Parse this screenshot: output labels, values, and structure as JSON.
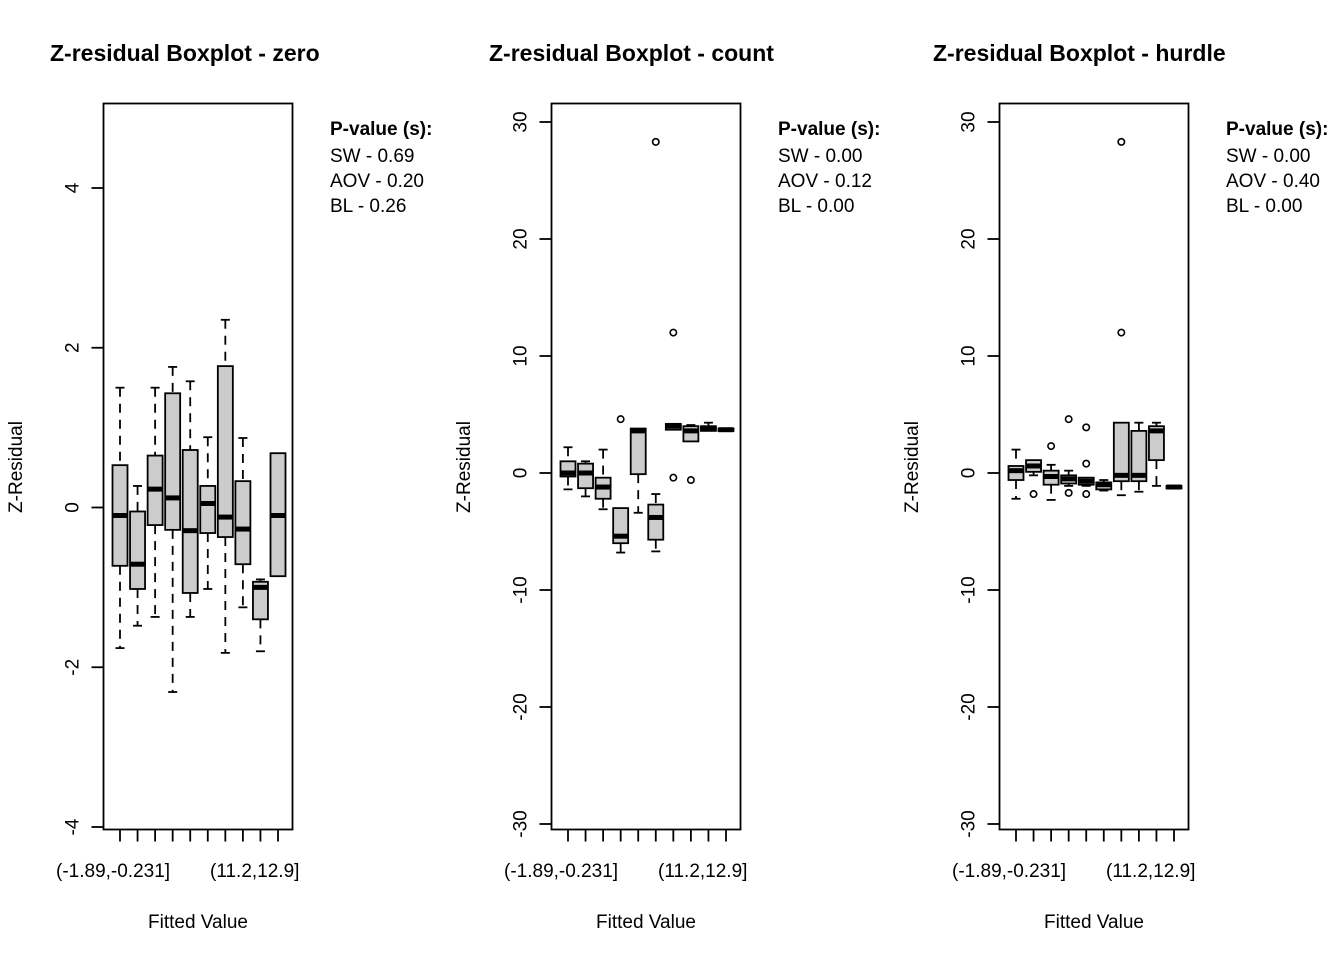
{
  "chart_data": [
    {
      "type": "boxplot",
      "title": "Z-residual Boxplot - zero",
      "xlabel": "Fitted Value",
      "ylabel": "Z-Residual",
      "ylim": [
        -4,
        5
      ],
      "yticks": [
        -4,
        -2,
        0,
        2,
        4
      ],
      "xtick_labels": [
        "(-1.89,-0.231]",
        "(11.2,12.9]"
      ],
      "n_groups": 10,
      "pvalues": {
        "heading": "P-value (s):",
        "lines": [
          "SW - 0.69",
          "AOV - 0.20",
          "BL - 0.26"
        ]
      },
      "boxes": [
        {
          "lo": -1.76,
          "q1": -0.73,
          "med": -0.1,
          "q3": 0.53,
          "hi": 1.5,
          "out": []
        },
        {
          "lo": -1.48,
          "q1": -1.02,
          "med": -0.71,
          "q3": -0.05,
          "hi": 0.27,
          "out": []
        },
        {
          "lo": -1.37,
          "q1": -0.22,
          "med": 0.23,
          "q3": 0.65,
          "hi": 1.5,
          "out": []
        },
        {
          "lo": -2.31,
          "q1": -0.28,
          "med": 0.12,
          "q3": 1.43,
          "hi": 1.76,
          "out": []
        },
        {
          "lo": -1.37,
          "q1": -1.07,
          "med": -0.29,
          "q3": 0.72,
          "hi": 1.58,
          "out": []
        },
        {
          "lo": -1.02,
          "q1": -0.32,
          "med": 0.05,
          "q3": 0.27,
          "hi": 0.88,
          "out": []
        },
        {
          "lo": -1.82,
          "q1": -0.37,
          "med": -0.12,
          "q3": 1.77,
          "hi": 2.35,
          "out": []
        },
        {
          "lo": -1.25,
          "q1": -0.71,
          "med": -0.27,
          "q3": 0.33,
          "hi": 0.87,
          "out": []
        },
        {
          "lo": -1.8,
          "q1": -1.4,
          "med": -1.0,
          "q3": -0.93,
          "hi": -0.9,
          "out": []
        },
        {
          "lo": -0.86,
          "q1": -0.86,
          "med": -0.1,
          "q3": 0.68,
          "hi": 0.68,
          "out": []
        }
      ]
    },
    {
      "type": "boxplot",
      "title": "Z-residual Boxplot - count",
      "xlabel": "Fitted Value",
      "ylabel": "Z-Residual",
      "ylim": [
        -30,
        30
      ],
      "yticks": [
        -30,
        -20,
        -10,
        0,
        10,
        20,
        30
      ],
      "xtick_labels": [
        "(-1.89,-0.231]",
        "(11.2,12.9]"
      ],
      "n_groups": 10,
      "pvalues": {
        "heading": "P-value (s):",
        "lines": [
          "SW - 0.00",
          "AOV - 0.12",
          "BL - 0.00"
        ]
      },
      "boxes": [
        {
          "lo": -1.4,
          "q1": -0.3,
          "med": 0.0,
          "q3": 1.0,
          "hi": 2.2,
          "out": []
        },
        {
          "lo": -2.0,
          "q1": -1.3,
          "med": 0.0,
          "q3": 0.8,
          "hi": 1.0,
          "out": []
        },
        {
          "lo": -3.1,
          "q1": -2.2,
          "med": -1.2,
          "q3": -0.4,
          "hi": 2.0,
          "out": []
        },
        {
          "lo": -6.8,
          "q1": -6.0,
          "med": -5.4,
          "q3": -3.0,
          "hi": -3.0,
          "out": [
            4.6
          ]
        },
        {
          "lo": -3.4,
          "q1": -0.1,
          "med": 3.6,
          "q3": 3.8,
          "hi": 3.8,
          "out": []
        },
        {
          "lo": -6.7,
          "q1": -5.7,
          "med": -3.8,
          "q3": -2.7,
          "hi": -1.8,
          "out": [
            28.3
          ]
        },
        {
          "lo": 3.7,
          "q1": 3.7,
          "med": 4.0,
          "q3": 4.2,
          "hi": 4.2,
          "out": [
            12.0,
            -0.4
          ]
        },
        {
          "lo": 2.7,
          "q1": 2.7,
          "med": 3.6,
          "q3": 4.0,
          "hi": 4.1,
          "out": [
            -0.6
          ]
        },
        {
          "lo": 3.6,
          "q1": 3.6,
          "med": 3.8,
          "q3": 4.0,
          "hi": 4.3,
          "out": []
        },
        {
          "lo": 3.6,
          "q1": 3.6,
          "med": 3.7,
          "q3": 3.8,
          "hi": 3.8,
          "out": []
        }
      ]
    },
    {
      "type": "boxplot",
      "title": "Z-residual Boxplot - hurdle",
      "xlabel": "Fitted Value",
      "ylabel": "Z-Residual",
      "ylim": [
        -30,
        30
      ],
      "yticks": [
        -30,
        -20,
        -10,
        0,
        10,
        20,
        30
      ],
      "xtick_labels": [
        "(-1.89,-0.231]",
        "(11.2,12.9]"
      ],
      "n_groups": 10,
      "pvalues": {
        "heading": "P-value (s):",
        "lines": [
          "SW - 0.00",
          "AOV - 0.40",
          "BL - 0.00"
        ]
      },
      "boxes": [
        {
          "lo": -2.2,
          "q1": -0.6,
          "med": 0.2,
          "q3": 0.6,
          "hi": 2.0,
          "out": []
        },
        {
          "lo": -0.2,
          "q1": 0.1,
          "med": 0.6,
          "q3": 1.1,
          "hi": 1.1,
          "out": [
            -1.8
          ]
        },
        {
          "lo": -2.3,
          "q1": -1.0,
          "med": -0.3,
          "q3": 0.2,
          "hi": 0.7,
          "out": [
            2.3
          ]
        },
        {
          "lo": -1.1,
          "q1": -0.9,
          "med": -0.5,
          "q3": -0.2,
          "hi": 0.2,
          "out": [
            4.6,
            -1.7
          ]
        },
        {
          "lo": -1.1,
          "q1": -1.0,
          "med": -0.7,
          "q3": -0.4,
          "hi": -0.4,
          "out": [
            3.9,
            0.8,
            -1.8
          ]
        },
        {
          "lo": -1.5,
          "q1": -1.4,
          "med": -1.0,
          "q3": -0.8,
          "hi": -0.6,
          "out": []
        },
        {
          "lo": -1.9,
          "q1": -0.7,
          "med": -0.2,
          "q3": 4.3,
          "hi": 4.3,
          "out": [
            28.3,
            12.0
          ]
        },
        {
          "lo": -1.6,
          "q1": -0.7,
          "med": -0.2,
          "q3": 3.6,
          "hi": 4.3,
          "out": []
        },
        {
          "lo": -1.1,
          "q1": 1.1,
          "med": 3.6,
          "q3": 4.0,
          "hi": 4.3,
          "out": []
        },
        {
          "lo": -1.3,
          "q1": -1.3,
          "med": -1.2,
          "q3": -1.1,
          "hi": -1.1,
          "out": []
        }
      ]
    }
  ]
}
